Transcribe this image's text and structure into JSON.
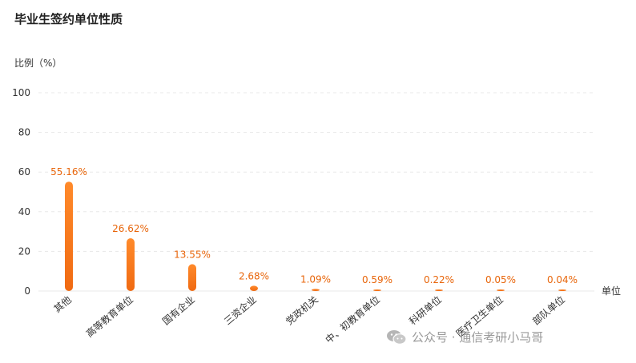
{
  "chart_data": {
    "type": "bar",
    "title": "毕业生签约单位性质",
    "ylabel": "比例（%）",
    "xlabel": "单位",
    "ylim": [
      0,
      100
    ],
    "yticks": [
      0,
      20,
      40,
      60,
      80,
      100
    ],
    "grid": true,
    "categories": [
      "其他",
      "高等教育单位",
      "国有企业",
      "三资企业",
      "党政机关",
      "中、初教育单位",
      "科研单位",
      "医疗卫生单位",
      "部队单位"
    ],
    "values": [
      55.16,
      26.62,
      13.55,
      2.68,
      1.09,
      0.59,
      0.22,
      0.05,
      0.04
    ],
    "data_labels": [
      "55.16%",
      "26.62%",
      "13.55%",
      "2.68%",
      "1.09%",
      "0.59%",
      "0.22%",
      "0.05%",
      "0.04%"
    ],
    "colors": {
      "bar_top": "#ff8a2b",
      "bar_bottom": "#f06a12",
      "label": "#e8650a",
      "grid": "#e8e8e8"
    }
  },
  "watermark": {
    "text": "公众号 · 通信考研小马哥",
    "icon": "wechat-icon"
  }
}
